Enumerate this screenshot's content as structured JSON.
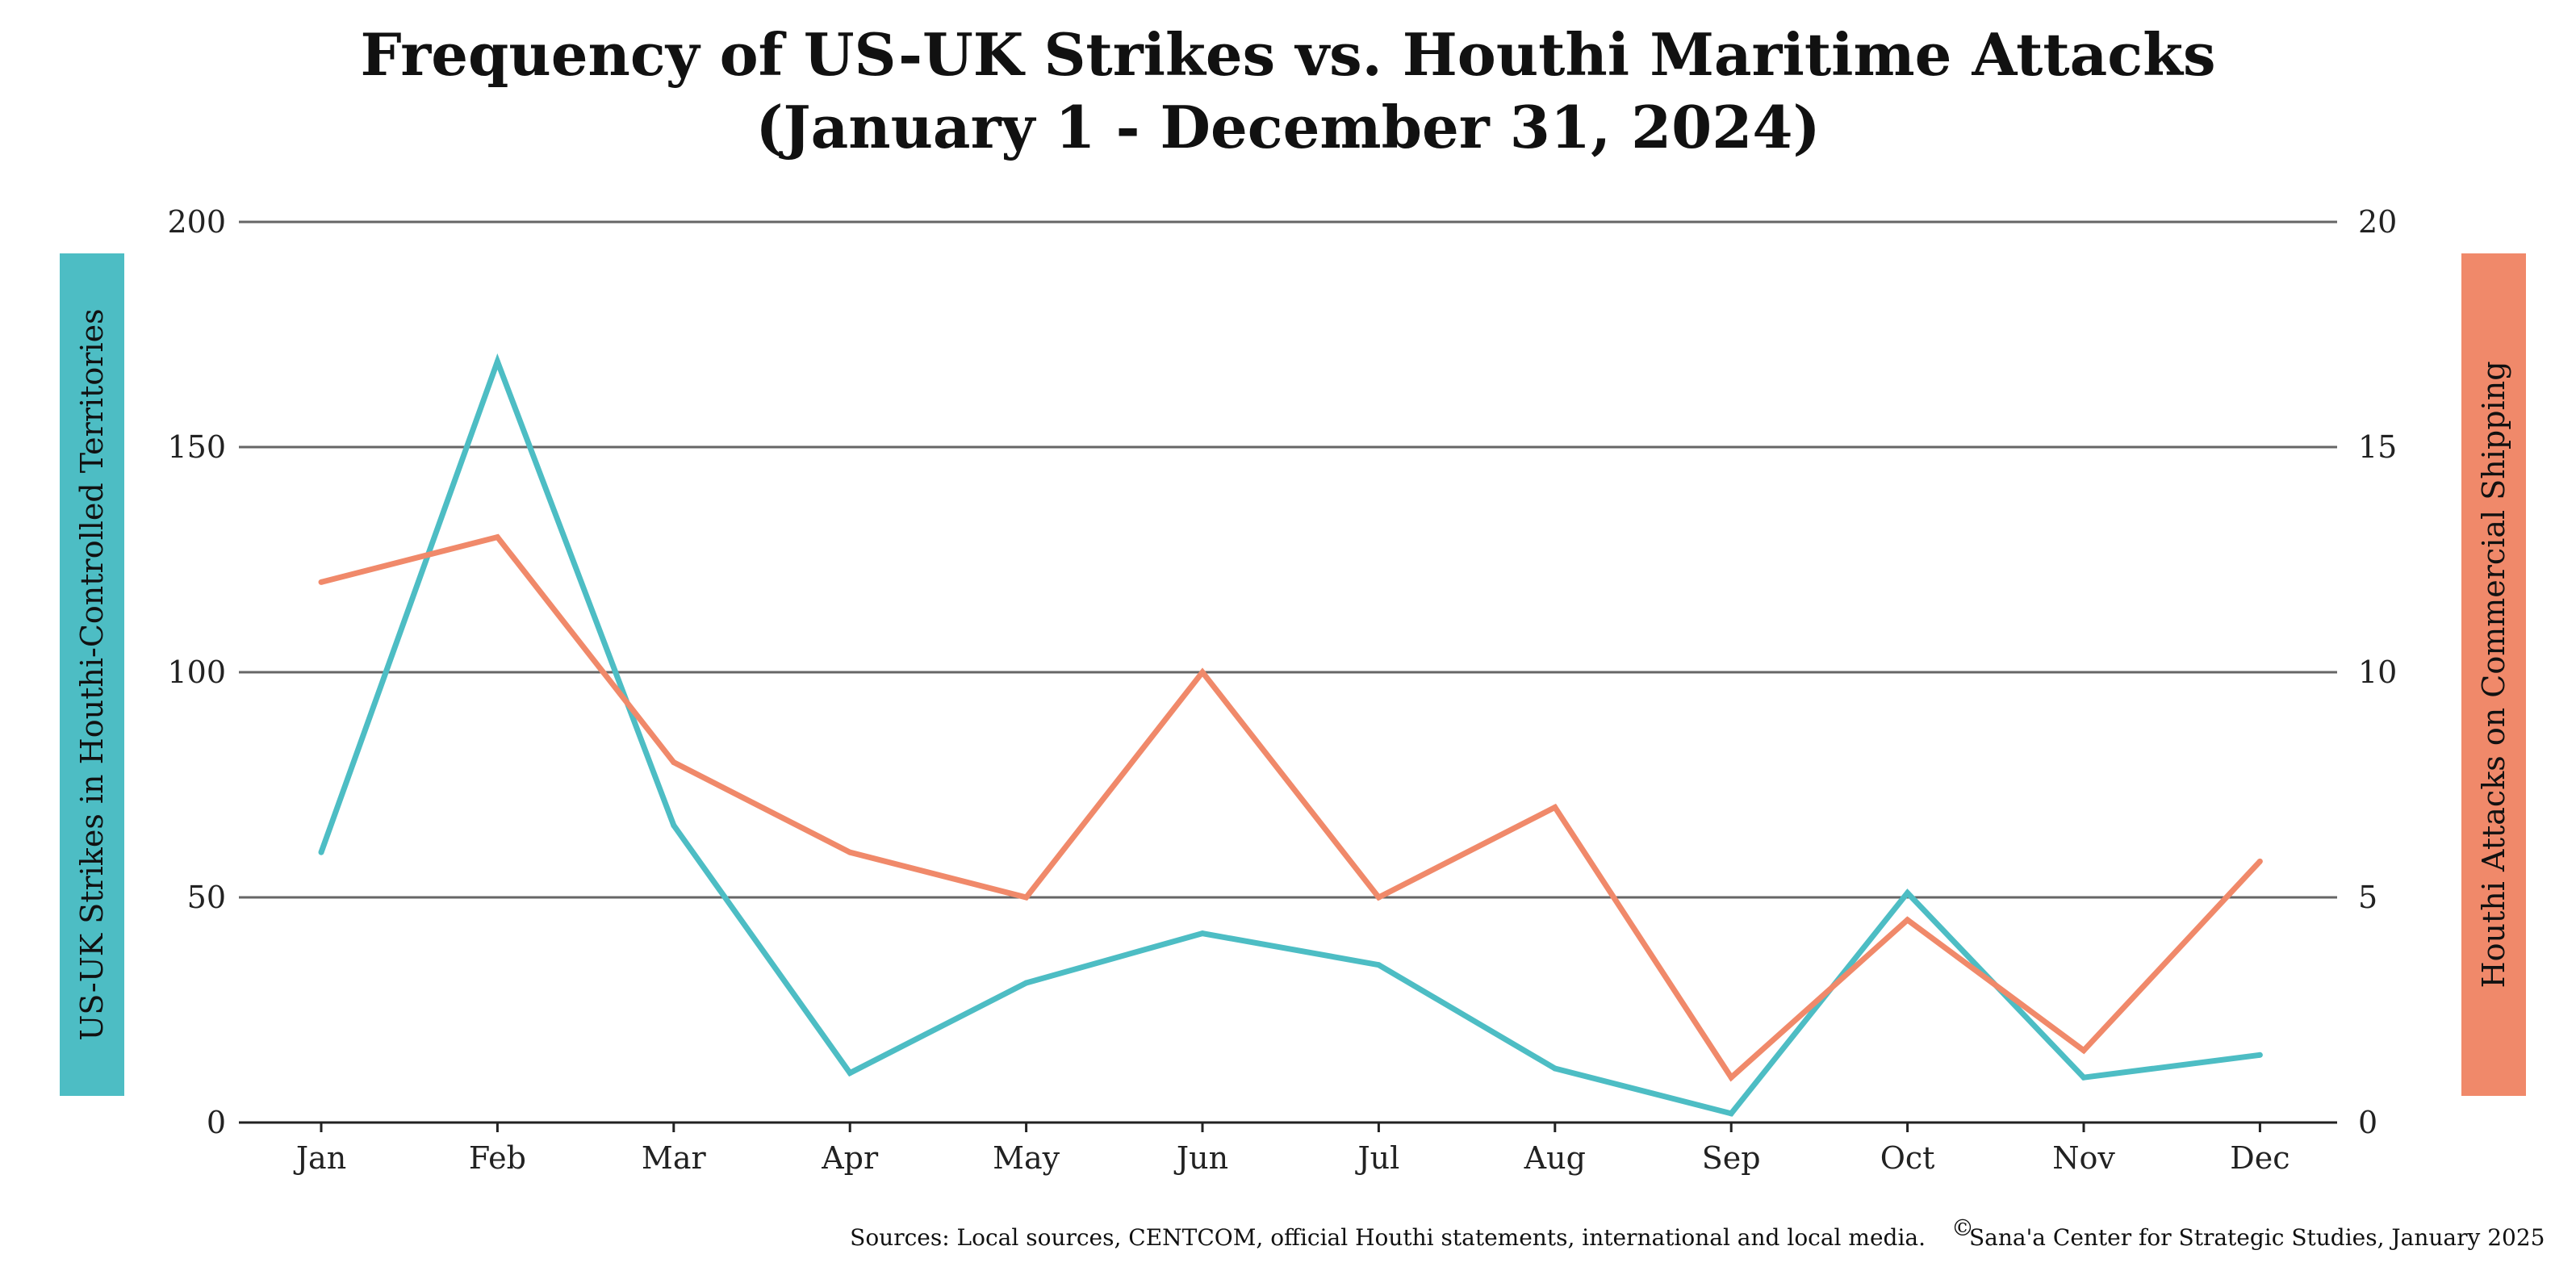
{
  "title_line1": "Frequency of US-UK Strikes vs. Houthi Maritime Attacks",
  "title_line2": "(January 1 - December 31, 2024)",
  "sources": "Sources: Local sources, CENTCOM, official Houthi statements, international and local media.",
  "copyright_symbol": "©",
  "copyright": "Sana'a Center for Strategic Studies, January 2025",
  "chart_data": {
    "type": "line",
    "categories": [
      "Jan",
      "Feb",
      "Mar",
      "Apr",
      "May",
      "Jun",
      "Jul",
      "Aug",
      "Sep",
      "Oct",
      "Nov",
      "Dec"
    ],
    "left_axis": {
      "label": "US-UK Strikes in Houthi-Controlled Territories",
      "ylim": [
        0,
        200
      ],
      "ticks": [
        "0",
        "50",
        "100",
        "150",
        "200"
      ],
      "color": "#4dbdc4"
    },
    "right_axis": {
      "label": "Houthi Attacks on Commercial Shipping",
      "ylim": [
        0,
        20
      ],
      "ticks": [
        "0",
        "5",
        "10",
        "15",
        "20"
      ],
      "color": "#f0896a"
    },
    "series": [
      {
        "axis": "left",
        "color": "#4dbdc4",
        "values": [
          60,
          169,
          66,
          11,
          31,
          42,
          35,
          12,
          2,
          51,
          10,
          15
        ]
      },
      {
        "axis": "right",
        "color": "#f0896a",
        "values": [
          12,
          13,
          8,
          6,
          5,
          10,
          5,
          7,
          1,
          4.5,
          1.6,
          5.8
        ]
      }
    ],
    "grid": true,
    "legend": "none"
  }
}
